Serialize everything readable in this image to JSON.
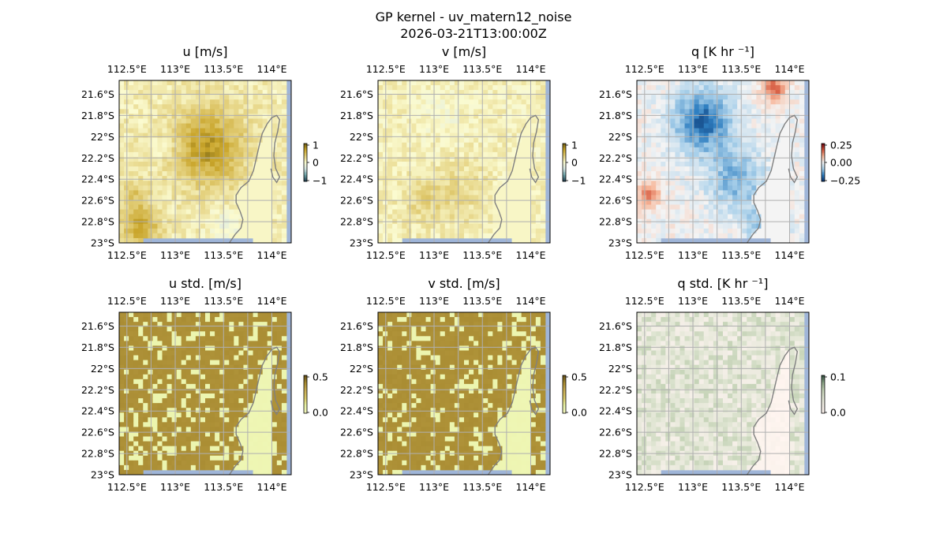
{
  "figure": {
    "title_line1": "GP kernel - uv_matern12_noise",
    "title_line2": "2026-03-21T13:00:00Z"
  },
  "chart_data": [
    {
      "id": "u",
      "type": "heatmap",
      "title": "u [m/s]",
      "colorbar_ticks": [
        "1",
        "0",
        "−1"
      ],
      "clim": [
        -1.3,
        1.3
      ],
      "x_ticks": [
        "112.5°E",
        "113°E",
        "113.5°E",
        "114°E"
      ],
      "y_ticks": [
        "21.6°S",
        "21.8°S",
        "22°S",
        "22.2°S",
        "22.4°S",
        "22.6°S",
        "22.8°S",
        "23°S"
      ],
      "x_range": [
        112.42,
        114.2
      ],
      "y_range": [
        -23.0,
        -21.47
      ],
      "blobs": [
        {
          "lon": 113.35,
          "lat": -22.1,
          "r": 0.35,
          "v": 0.8
        },
        {
          "lon": 112.65,
          "lat": -22.85,
          "r": 0.18,
          "v": 0.7
        },
        {
          "lon": 112.6,
          "lat": -22.55,
          "r": 0.15,
          "v": 0.35
        },
        {
          "lon": 113.55,
          "lat": -22.85,
          "r": 0.2,
          "v": -0.3
        },
        {
          "lon": 112.9,
          "lat": -22.1,
          "r": 0.12,
          "v": -0.15
        }
      ],
      "base": 0.15,
      "colormap": [
        "#1f3b4d",
        "#6aa1a6",
        "#d8e7e4",
        "#fbfbd0",
        "#e3cf7a",
        "#c9a52a",
        "#6b5a10"
      ]
    },
    {
      "id": "v",
      "type": "heatmap",
      "title": "v [m/s]",
      "colorbar_ticks": [
        "1",
        "0",
        "−1"
      ],
      "clim": [
        -1.3,
        1.3
      ],
      "x_ticks": [
        "112.5°E",
        "113°E",
        "113.5°E",
        "114°E"
      ],
      "y_ticks": [
        "21.6°S",
        "21.8°S",
        "22°S",
        "22.2°S",
        "22.4°S",
        "22.6°S",
        "22.8°S",
        "23°S"
      ],
      "x_range": [
        112.42,
        114.2
      ],
      "y_range": [
        -23.0,
        -21.47
      ],
      "blobs": [
        {
          "lon": 112.9,
          "lat": -22.6,
          "r": 0.25,
          "v": 0.25
        },
        {
          "lon": 113.3,
          "lat": -22.5,
          "r": 0.3,
          "v": 0.2
        },
        {
          "lon": 113.1,
          "lat": -21.8,
          "r": 0.2,
          "v": -0.15
        }
      ],
      "base": 0.1,
      "colormap": [
        "#1f3b4d",
        "#6aa1a6",
        "#d8e7e4",
        "#fbfbd0",
        "#e3cf7a",
        "#c9a52a",
        "#6b5a10"
      ]
    },
    {
      "id": "q",
      "type": "heatmap",
      "title": "q [K hr ⁻¹]",
      "colorbar_ticks": [
        "0.25",
        "0.00",
        "−0.25"
      ],
      "clim": [
        -0.4,
        0.4
      ],
      "x_ticks": [
        "112.5°E",
        "113°E",
        "113.5°E",
        "114°E"
      ],
      "y_ticks": [
        "21.6°S",
        "21.8°S",
        "22°S",
        "22.2°S",
        "22.4°S",
        "22.6°S",
        "22.8°S",
        "23°S"
      ],
      "x_range": [
        112.42,
        114.2
      ],
      "y_range": [
        -23.0,
        -21.47
      ],
      "blobs": [
        {
          "lon": 113.1,
          "lat": -21.85,
          "r": 0.3,
          "v": -0.3
        },
        {
          "lon": 113.45,
          "lat": -22.4,
          "r": 0.3,
          "v": -0.18
        },
        {
          "lon": 113.75,
          "lat": -22.85,
          "r": 0.2,
          "v": -0.2
        },
        {
          "lon": 113.85,
          "lat": -21.55,
          "r": 0.12,
          "v": 0.25
        },
        {
          "lon": 112.55,
          "lat": -22.55,
          "r": 0.12,
          "v": 0.2
        }
      ],
      "base": 0.0,
      "colormap": [
        "#08306b",
        "#2f7fc1",
        "#a9d0ea",
        "#f4f4f4",
        "#f7b79a",
        "#d4553b",
        "#67000d"
      ]
    },
    {
      "id": "u_std",
      "type": "heatmap",
      "title": "u std. [m/s]",
      "colorbar_ticks": [
        "0.5",
        "0.0"
      ],
      "clim": [
        0.0,
        0.55
      ],
      "x_ticks": [
        "112.5°E",
        "113°E",
        "113.5°E",
        "114°E"
      ],
      "y_ticks": [
        "21.6°S",
        "21.8°S",
        "22°S",
        "22.2°S",
        "22.4°S",
        "22.6°S",
        "22.8°S",
        "23°S"
      ],
      "x_range": [
        112.42,
        114.2
      ],
      "y_range": [
        -23.0,
        -21.47
      ],
      "mode": "landsea",
      "values": {
        "land": 0.05,
        "sea": 0.42,
        "patchy": 0.4
      },
      "colormap": [
        "#f4f8c0",
        "#e8f3a6",
        "#d9c96a",
        "#c9ad55",
        "#a78a30",
        "#5e4a14"
      ]
    },
    {
      "id": "v_std",
      "type": "heatmap",
      "title": "v std. [m/s]",
      "colorbar_ticks": [
        "0.5",
        "0.0"
      ],
      "clim": [
        0.0,
        0.55
      ],
      "x_ticks": [
        "112.5°E",
        "113°E",
        "113.5°E",
        "114°E"
      ],
      "y_ticks": [
        "21.6°S",
        "21.8°S",
        "22°S",
        "22.2°S",
        "22.4°S",
        "22.6°S",
        "22.8°S",
        "23°S"
      ],
      "x_range": [
        112.42,
        114.2
      ],
      "y_range": [
        -23.0,
        -21.47
      ],
      "mode": "landsea",
      "values": {
        "land": 0.05,
        "sea": 0.42,
        "patchy": 0.4
      },
      "colormap": [
        "#f4f8c0",
        "#e8f3a6",
        "#d9c96a",
        "#c9ad55",
        "#a78a30",
        "#5e4a14"
      ]
    },
    {
      "id": "q_std",
      "type": "heatmap",
      "title": "q std. [K hr ⁻¹]",
      "colorbar_ticks": [
        "0.1",
        "0.0"
      ],
      "clim": [
        0.0,
        0.12
      ],
      "x_ticks": [
        "112.5°E",
        "113°E",
        "113.5°E",
        "114°E"
      ],
      "y_ticks": [
        "21.6°S",
        "21.8°S",
        "22°S",
        "22.2°S",
        "22.4°S",
        "22.6°S",
        "22.8°S",
        "23°S"
      ],
      "x_range": [
        112.42,
        114.2
      ],
      "y_range": [
        -23.0,
        -21.47
      ],
      "mode": "landsea",
      "values": {
        "land": 0.0,
        "sea": 0.06,
        "patchy": 0.04
      },
      "colormap": [
        "#fff5f0",
        "#f3eee6",
        "#e1e6d4",
        "#c6d4b8",
        "#8fa88a",
        "#2c4a3a"
      ]
    }
  ],
  "colors": {
    "grid": "#b0b0b0",
    "coastline": "#808080",
    "missing": "#9fb5d8"
  }
}
